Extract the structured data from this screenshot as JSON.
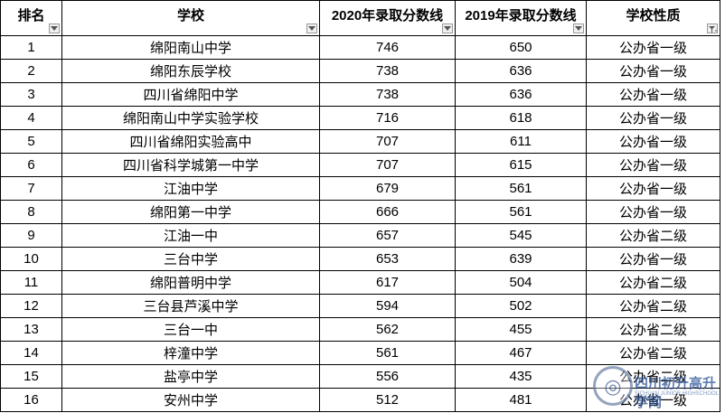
{
  "headers": {
    "rank": "排名",
    "school": "学校",
    "score_2020": "2020年录取分数线",
    "score_2019": "2019年录取分数线",
    "type": "学校性质"
  },
  "rows": [
    {
      "rank": "1",
      "school": "绵阳南山中学",
      "score_2020": "746",
      "score_2019": "650",
      "type": "公办省一级"
    },
    {
      "rank": "2",
      "school": "绵阳东辰学校",
      "score_2020": "738",
      "score_2019": "636",
      "type": "公办省一级"
    },
    {
      "rank": "3",
      "school": "四川省绵阳中学",
      "score_2020": "738",
      "score_2019": "636",
      "type": "公办省一级"
    },
    {
      "rank": "4",
      "school": "绵阳南山中学实验学校",
      "score_2020": "716",
      "score_2019": "618",
      "type": "公办省一级"
    },
    {
      "rank": "5",
      "school": "四川省绵阳实验高中",
      "score_2020": "707",
      "score_2019": "611",
      "type": "公办省一级"
    },
    {
      "rank": "6",
      "school": "四川省科学城第一中学",
      "score_2020": "707",
      "score_2019": "615",
      "type": "公办省一级"
    },
    {
      "rank": "7",
      "school": "江油中学",
      "score_2020": "679",
      "score_2019": "561",
      "type": "公办省一级"
    },
    {
      "rank": "8",
      "school": "绵阳第一中学",
      "score_2020": "666",
      "score_2019": "561",
      "type": "公办省一级"
    },
    {
      "rank": "9",
      "school": "江油一中",
      "score_2020": "657",
      "score_2019": "545",
      "type": "公办省二级"
    },
    {
      "rank": "10",
      "school": "三台中学",
      "score_2020": "653",
      "score_2019": "639",
      "type": "公办省一级"
    },
    {
      "rank": "11",
      "school": "绵阳普明中学",
      "score_2020": "617",
      "score_2019": "504",
      "type": "公办省二级"
    },
    {
      "rank": "12",
      "school": "三台县芦溪中学",
      "score_2020": "594",
      "score_2019": "502",
      "type": "公办省二级"
    },
    {
      "rank": "13",
      "school": "三台一中",
      "score_2020": "562",
      "score_2019": "455",
      "type": "公办省二级"
    },
    {
      "rank": "14",
      "school": "梓潼中学",
      "score_2020": "561",
      "score_2019": "467",
      "type": "公办省二级"
    },
    {
      "rank": "15",
      "school": "盐亭中学",
      "score_2020": "556",
      "score_2019": "435",
      "type": "公办省二级"
    },
    {
      "rank": "16",
      "school": "安州中学",
      "score_2020": "512",
      "score_2019": "481",
      "type": "公办省一级"
    }
  ],
  "watermark": {
    "title": "四川初升高升学网",
    "subtitle": "SICHUAN JUNIOR HIGHSCHOOL NETWORK"
  }
}
